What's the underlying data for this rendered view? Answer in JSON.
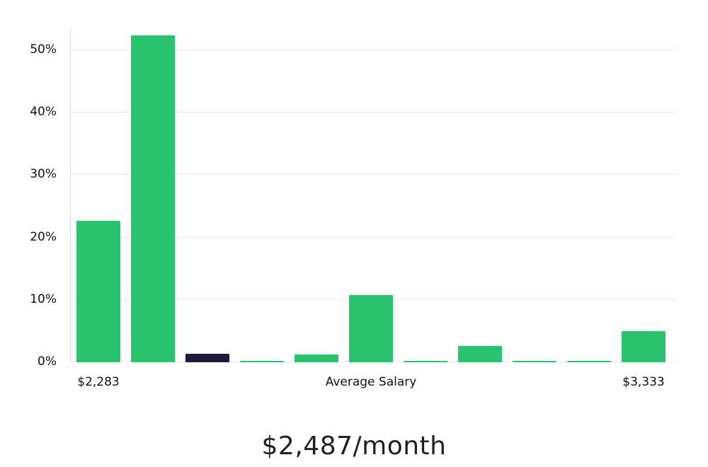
{
  "chart_data": {
    "type": "bar",
    "title": "$2,487/month",
    "ylim": [
      0,
      53.5
    ],
    "grid": true,
    "y_ticks": [
      {
        "value": 0,
        "label": "0%"
      },
      {
        "value": 10,
        "label": "10%"
      },
      {
        "value": 20,
        "label": "20%"
      },
      {
        "value": 30,
        "label": "30%"
      },
      {
        "value": 40,
        "label": "40%"
      },
      {
        "value": 50,
        "label": "50%"
      }
    ],
    "values": [
      22.7,
      52.4,
      1.4,
      0.2,
      1.3,
      10.8,
      0.2,
      2.6,
      0.2,
      0.2,
      5.0
    ],
    "highlight_index": 2,
    "x_axis_labels": [
      {
        "text": "$2,283",
        "bar_index": 0
      },
      {
        "text": "Average Salary",
        "bar_index": 5
      },
      {
        "text": "$3,333",
        "bar_index": 10
      }
    ],
    "colors": {
      "bar": "#2bc46e",
      "highlight": "#1e1b3a",
      "grid": "#e7e7e7",
      "axis": "#d9d9d9",
      "text": "#111111"
    }
  }
}
